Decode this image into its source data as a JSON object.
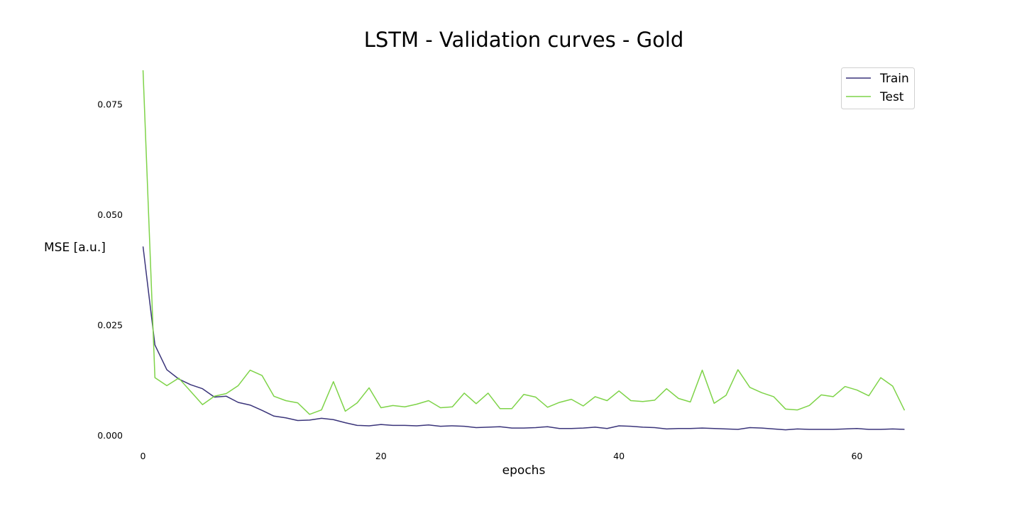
{
  "chart_data": {
    "type": "line",
    "title": "LSTM - Validation curves - Gold",
    "xlabel": "epochs",
    "ylabel": "MSE [a.u.]",
    "xlim": [
      -2,
      66
    ],
    "ylim": [
      -0.0015,
      0.0835
    ],
    "xticks": [
      0,
      20,
      40,
      60
    ],
    "xtick_labels": [
      "0",
      "20",
      "40",
      "60"
    ],
    "yticks": [
      0.0,
      0.025,
      0.05,
      0.075
    ],
    "ytick_labels": [
      "0.000",
      "0.025",
      "0.050",
      "0.075"
    ],
    "grid": false,
    "legend_position": "top-right",
    "colors": {
      "Train": "#3a347a",
      "Test": "#7ed348"
    },
    "series": [
      {
        "name": "Train",
        "x": [
          0,
          1,
          2,
          3,
          4,
          5,
          6,
          7,
          8,
          9,
          10,
          11,
          12,
          13,
          14,
          15,
          16,
          17,
          18,
          19,
          20,
          21,
          22,
          23,
          24,
          25,
          26,
          27,
          28,
          29,
          30,
          31,
          32,
          33,
          34,
          35,
          36,
          37,
          38,
          39,
          40,
          41,
          42,
          43,
          44,
          45,
          46,
          47,
          48,
          49,
          50,
          51,
          52,
          53,
          54,
          55,
          56,
          57,
          58,
          59,
          60,
          61,
          62,
          63,
          64
        ],
        "values": [
          0.0428,
          0.0205,
          0.0149,
          0.0128,
          0.0115,
          0.0106,
          0.0087,
          0.0089,
          0.0075,
          0.0069,
          0.0057,
          0.0044,
          0.004,
          0.0034,
          0.0035,
          0.0039,
          0.0036,
          0.0029,
          0.0023,
          0.0022,
          0.0025,
          0.0023,
          0.0023,
          0.0022,
          0.0024,
          0.0021,
          0.0022,
          0.0021,
          0.0018,
          0.0019,
          0.002,
          0.0017,
          0.0017,
          0.0018,
          0.002,
          0.0016,
          0.0016,
          0.0017,
          0.0019,
          0.0016,
          0.0022,
          0.0021,
          0.0019,
          0.0018,
          0.0015,
          0.0016,
          0.0016,
          0.0017,
          0.0016,
          0.0015,
          0.0014,
          0.0018,
          0.0017,
          0.0015,
          0.0013,
          0.0015,
          0.0014,
          0.0014,
          0.0014,
          0.0015,
          0.0016,
          0.0014,
          0.0014,
          0.0015,
          0.0014
        ]
      },
      {
        "name": "Test",
        "x": [
          0,
          1,
          2,
          3,
          4,
          5,
          6,
          7,
          8,
          9,
          10,
          11,
          12,
          13,
          14,
          15,
          16,
          17,
          18,
          19,
          20,
          21,
          22,
          23,
          24,
          25,
          26,
          27,
          28,
          29,
          30,
          31,
          32,
          33,
          34,
          35,
          36,
          37,
          38,
          39,
          40,
          41,
          42,
          43,
          44,
          45,
          46,
          47,
          48,
          49,
          50,
          51,
          52,
          53,
          54,
          55,
          56,
          57,
          58,
          59,
          60,
          61,
          62,
          63,
          64
        ],
        "values": [
          0.0827,
          0.0131,
          0.0113,
          0.013,
          0.01,
          0.007,
          0.0089,
          0.0095,
          0.0113,
          0.0148,
          0.0136,
          0.0089,
          0.0079,
          0.0074,
          0.0048,
          0.0058,
          0.0122,
          0.0055,
          0.0074,
          0.0108,
          0.0063,
          0.0068,
          0.0065,
          0.0071,
          0.0079,
          0.0063,
          0.0065,
          0.0096,
          0.0072,
          0.0096,
          0.0061,
          0.0061,
          0.0093,
          0.0087,
          0.0064,
          0.0075,
          0.0082,
          0.0067,
          0.0088,
          0.0079,
          0.0101,
          0.0079,
          0.0077,
          0.008,
          0.0106,
          0.0084,
          0.0076,
          0.0148,
          0.0073,
          0.0091,
          0.0149,
          0.0109,
          0.0097,
          0.0088,
          0.006,
          0.0058,
          0.0068,
          0.0092,
          0.0088,
          0.0111,
          0.0103,
          0.009,
          0.0131,
          0.0112,
          0.0057
        ]
      }
    ]
  }
}
